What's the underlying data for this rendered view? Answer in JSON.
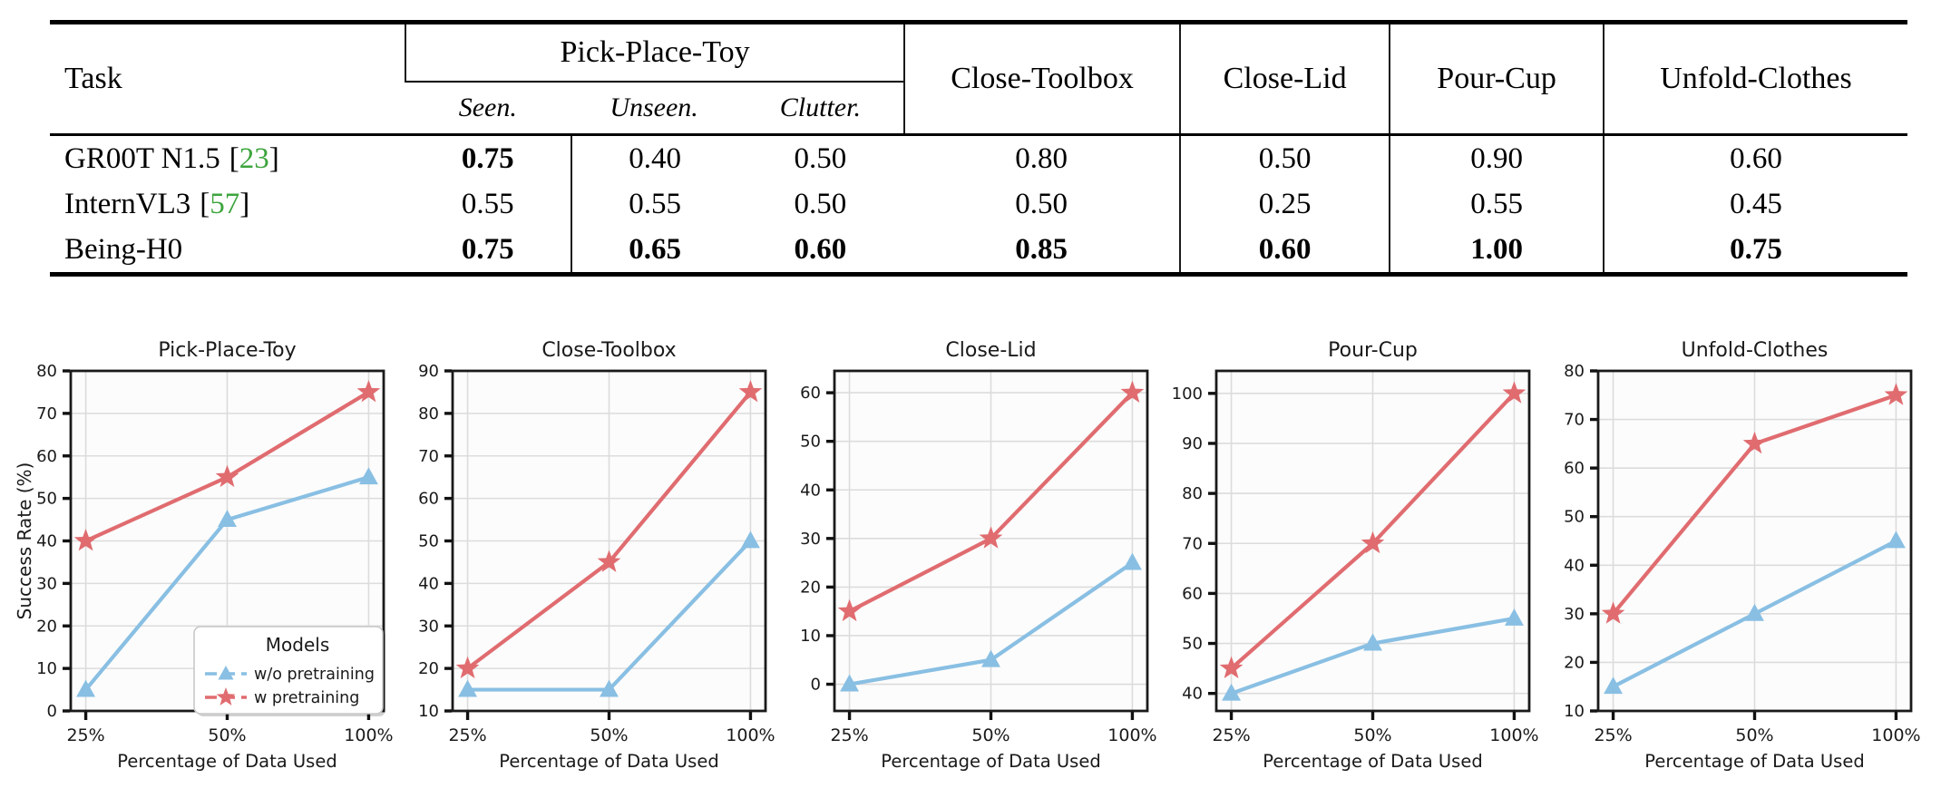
{
  "table": {
    "task_header": "Task",
    "group_header": "Pick-Place-Toy",
    "sub_headers": [
      "Seen.",
      "Unseen.",
      "Clutter."
    ],
    "single_headers": [
      "Close-Toolbox",
      "Close-Lid",
      "Pour-Cup",
      "Unfold-Clothes"
    ],
    "cite_brackets": [
      "[",
      "]"
    ],
    "cite_color": "#3DA43D",
    "rows": [
      {
        "model": "GR00T N1.5",
        "cite": "23",
        "values": [
          "0.75",
          "0.40",
          "0.50",
          "0.80",
          "0.50",
          "0.90",
          "0.60"
        ],
        "bold": [
          1,
          0,
          0,
          0,
          0,
          0,
          0
        ]
      },
      {
        "model": "InternVL3",
        "cite": "57",
        "values": [
          "0.55",
          "0.55",
          "0.50",
          "0.50",
          "0.25",
          "0.55",
          "0.45"
        ],
        "bold": [
          0,
          0,
          0,
          0,
          0,
          0,
          0
        ]
      },
      {
        "model": "Being-H0",
        "cite": null,
        "values": [
          "0.75",
          "0.65",
          "0.60",
          "0.85",
          "0.60",
          "1.00",
          "0.75"
        ],
        "bold": [
          1,
          1,
          1,
          1,
          1,
          1,
          1
        ]
      }
    ]
  },
  "chart_common": {
    "xlabel": "Percentage of Data Used",
    "ylabel": "Success Rate (%)",
    "x_labels": [
      "25%",
      "50%",
      "100%"
    ],
    "legend_title": "Models",
    "colors": {
      "without_pretraining": "#89BFE3",
      "with_pretraining": "#E06C70"
    },
    "grid_color": "#dcdcdc",
    "frame_color": "#1a1a1a"
  },
  "chart_data": [
    {
      "type": "line",
      "title": "Pick-Place-Toy",
      "x": [
        "25%",
        "50%",
        "100%"
      ],
      "series": [
        {
          "name": "w/o pretraining",
          "marker": "triangle",
          "color": "#89BFE3",
          "values": [
            5,
            45,
            55
          ]
        },
        {
          "name": "w pretraining",
          "marker": "star",
          "color": "#E06C70",
          "values": [
            40,
            55,
            75
          ]
        }
      ],
      "ylim": [
        0,
        80
      ],
      "yticks": [
        0,
        10,
        20,
        30,
        40,
        50,
        60,
        70,
        80
      ],
      "xlabel": "Percentage of Data Used",
      "ylabel": "Success Rate (%)",
      "legend": {
        "title": "Models",
        "entries": [
          "w/o pretraining",
          "w pretraining"
        ],
        "position": "lower right"
      },
      "grid": true
    },
    {
      "type": "line",
      "title": "Close-Toolbox",
      "x": [
        "25%",
        "50%",
        "100%"
      ],
      "series": [
        {
          "name": "w/o pretraining",
          "marker": "triangle",
          "color": "#89BFE3",
          "values": [
            15,
            15,
            50
          ]
        },
        {
          "name": "w pretraining",
          "marker": "star",
          "color": "#E06C70",
          "values": [
            20,
            45,
            85
          ]
        }
      ],
      "ylim": [
        10,
        90
      ],
      "yticks": [
        10,
        20,
        30,
        40,
        50,
        60,
        70,
        80,
        90
      ],
      "xlabel": "Percentage of Data Used",
      "ylabel": null,
      "legend": null,
      "grid": true
    },
    {
      "type": "line",
      "title": "Close-Lid",
      "x": [
        "25%",
        "50%",
        "100%"
      ],
      "series": [
        {
          "name": "w/o pretraining",
          "marker": "triangle",
          "color": "#89BFE3",
          "values": [
            0,
            5,
            25
          ]
        },
        {
          "name": "w pretraining",
          "marker": "star",
          "color": "#E06C70",
          "values": [
            15,
            30,
            60
          ]
        }
      ],
      "ylim": [
        -5.5,
        64.5
      ],
      "yticks": [
        0,
        10,
        20,
        30,
        40,
        50,
        60
      ],
      "xlabel": "Percentage of Data Used",
      "ylabel": null,
      "legend": null,
      "grid": true
    },
    {
      "type": "line",
      "title": "Pour-Cup",
      "x": [
        "25%",
        "50%",
        "100%"
      ],
      "series": [
        {
          "name": "w/o pretraining",
          "marker": "triangle",
          "color": "#89BFE3",
          "values": [
            40,
            50,
            55
          ]
        },
        {
          "name": "w pretraining",
          "marker": "star",
          "color": "#E06C70",
          "values": [
            45,
            70,
            100
          ]
        }
      ],
      "ylim": [
        36.5,
        104.5
      ],
      "yticks": [
        40,
        50,
        60,
        70,
        80,
        90,
        100
      ],
      "xlabel": "Percentage of Data Used",
      "ylabel": null,
      "legend": null,
      "grid": true
    },
    {
      "type": "line",
      "title": "Unfold-Clothes",
      "x": [
        "25%",
        "50%",
        "100%"
      ],
      "series": [
        {
          "name": "w/o pretraining",
          "marker": "triangle",
          "color": "#89BFE3",
          "values": [
            15,
            30,
            45
          ]
        },
        {
          "name": "w pretraining",
          "marker": "star",
          "color": "#E06C70",
          "values": [
            30,
            65,
            75
          ]
        }
      ],
      "ylim": [
        10,
        80
      ],
      "yticks": [
        10,
        20,
        30,
        40,
        50,
        60,
        70,
        80
      ],
      "xlabel": "Percentage of Data Used",
      "ylabel": null,
      "legend": null,
      "grid": true
    }
  ]
}
